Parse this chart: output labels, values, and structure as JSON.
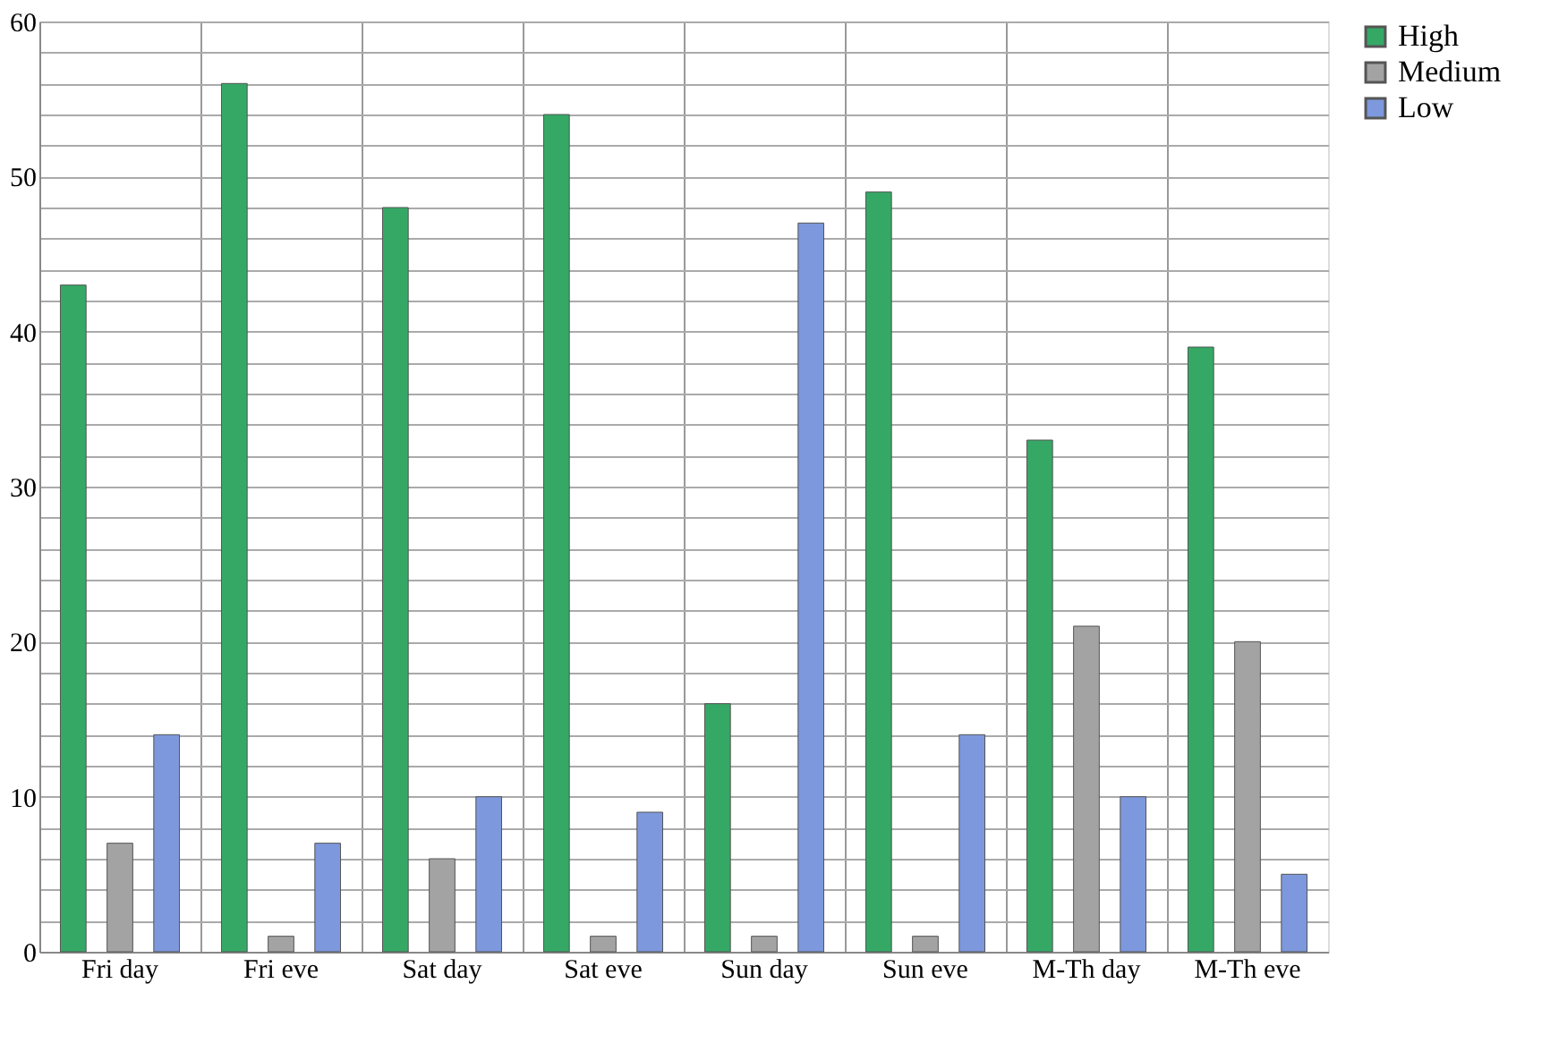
{
  "chart_data": {
    "type": "bar",
    "categories": [
      "Fri day",
      "Fri eve",
      "Sat day",
      "Sat eve",
      "Sun day",
      "Sun eve",
      "M-Th day",
      "M-Th eve"
    ],
    "series": [
      {
        "name": "High",
        "color": "#35a866",
        "values": [
          43,
          56,
          48,
          54,
          16,
          49,
          33,
          39
        ]
      },
      {
        "name": "Medium",
        "color": "#a3a3a3",
        "values": [
          7,
          1,
          6,
          1,
          1,
          1,
          21,
          20
        ]
      },
      {
        "name": "Low",
        "color": "#7d98dc",
        "values": [
          14,
          7,
          10,
          9,
          47,
          14,
          10,
          5
        ]
      }
    ],
    "ylim": [
      0,
      60
    ],
    "yticks": [
      0,
      {
        "value": 2,
        "label": null
      },
      {
        "value": 4,
        "label": null
      },
      {
        "value": 6,
        "label": null
      },
      {
        "value": 8,
        "label": null
      },
      10,
      {
        "value": 12,
        "label": null
      },
      {
        "value": 14,
        "label": null
      },
      {
        "value": 16,
        "label": null
      },
      {
        "value": 18,
        "label": null
      },
      20,
      {
        "value": 22,
        "label": null
      },
      {
        "value": 24,
        "label": null
      },
      {
        "value": 26,
        "label": null
      },
      {
        "value": 28,
        "label": null
      },
      30,
      {
        "value": 32,
        "label": null
      },
      {
        "value": 34,
        "label": null
      },
      {
        "value": 36,
        "label": null
      },
      {
        "value": 38,
        "label": null
      },
      40,
      {
        "value": 42,
        "label": null
      },
      {
        "value": 44,
        "label": null
      },
      {
        "value": 46,
        "label": null
      },
      {
        "value": 48,
        "label": null
      },
      50,
      {
        "value": 52,
        "label": null
      },
      {
        "value": 54,
        "label": null
      },
      {
        "value": 56,
        "label": null
      },
      {
        "value": 58,
        "label": null
      },
      60
    ],
    "grid": true,
    "legend": "right"
  }
}
